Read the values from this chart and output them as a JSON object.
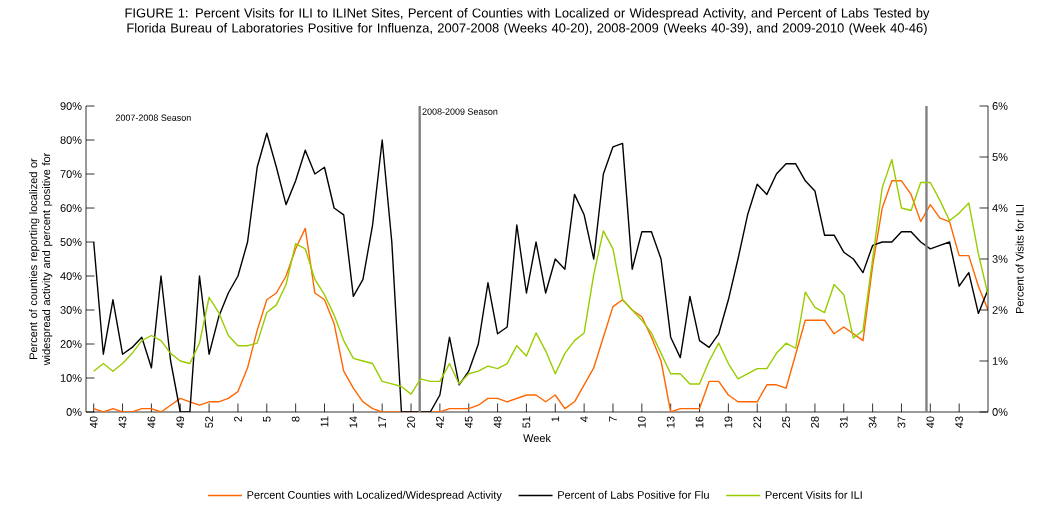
{
  "chart_data": {
    "type": "line",
    "title": "FIGURE 1: Percent Visits for ILI to ILINet Sites, Percent of Counties with Localized or Widespread Activity, and Percent of Labs Tested by Florida Bureau of Laboratories Positive for Influenza, 2007-2008 (Weeks 40-20), 2008-2009 (Weeks 40-39), and 2009-2010 (Week 40-46)",
    "xlabel": "Week",
    "ylabel": "Percent of counties reporting localized or widespread activity and percent positive for",
    "y2label": "Percent of Visits for ILI",
    "categories": [
      "40",
      null,
      null,
      "43",
      null,
      null,
      "46",
      null,
      null,
      "49",
      null,
      null,
      "52",
      null,
      null,
      "2",
      null,
      null,
      "5",
      null,
      null,
      "8",
      null,
      null,
      "11",
      null,
      null,
      "14",
      null,
      null,
      "17",
      null,
      null,
      "20",
      null,
      null,
      "42",
      null,
      null,
      "45",
      null,
      null,
      "48",
      null,
      null,
      "51",
      null,
      null,
      "1",
      null,
      null,
      "4",
      null,
      null,
      "7",
      null,
      null,
      "10",
      null,
      null,
      "13",
      null,
      null,
      "16",
      null,
      null,
      "19",
      null,
      null,
      "22",
      null,
      null,
      "25",
      null,
      null,
      "28",
      null,
      null,
      "31",
      null,
      null,
      "34",
      null,
      null,
      "37",
      null,
      null,
      "40",
      null,
      null,
      "43",
      null,
      null,
      null
    ],
    "series": [
      {
        "name": "Percent Counties with Localized/Widespread Activity",
        "color": "#ff6600",
        "values": [
          1,
          0,
          1,
          0,
          0,
          1,
          1,
          0,
          2,
          4,
          3,
          2,
          3,
          3,
          4,
          6,
          13,
          24,
          33,
          35,
          40,
          48,
          54,
          35,
          33,
          26,
          12,
          7,
          3,
          1,
          0,
          0,
          0,
          0,
          0,
          0,
          0,
          1,
          1,
          1,
          2,
          4,
          4,
          3,
          4,
          5,
          5,
          3,
          5,
          1,
          3,
          8,
          13,
          22,
          31,
          33,
          30,
          28,
          22,
          15,
          0,
          1,
          1,
          1,
          9,
          9,
          5,
          3,
          3,
          3,
          8,
          8,
          7,
          17,
          27,
          27,
          27,
          23,
          25,
          23,
          21,
          43,
          60,
          68,
          68,
          64,
          56,
          61,
          57,
          56,
          46,
          46,
          37,
          30
        ]
      },
      {
        "name": "Percent of Labs Positive for Flu",
        "color": "#000000",
        "values": [
          50,
          17,
          33,
          17,
          19,
          22,
          13,
          40,
          15,
          0,
          0,
          40,
          17,
          28,
          35,
          40,
          50,
          72,
          82,
          72,
          61,
          68,
          77,
          70,
          72,
          60,
          58,
          34,
          39,
          55,
          80,
          50,
          0,
          0,
          0,
          0,
          5,
          22,
          8,
          12,
          20,
          38,
          23,
          25,
          55,
          35,
          50,
          35,
          45,
          42,
          64,
          58,
          45,
          70,
          78,
          79,
          42,
          53,
          53,
          45,
          22,
          16,
          34,
          21,
          19,
          23,
          33,
          45,
          58,
          67,
          64,
          70,
          73,
          73,
          68,
          65,
          52,
          52,
          47,
          45,
          41,
          49,
          50,
          50,
          53,
          53,
          50,
          48,
          49,
          50,
          37,
          41,
          29,
          36
        ]
      },
      {
        "name": "Percent Visits for ILI",
        "color": "#99cc00",
        "axis": "y2",
        "values": [
          0.8,
          0.95,
          0.8,
          0.95,
          1.15,
          1.4,
          1.5,
          1.4,
          1.15,
          1.0,
          0.95,
          1.35,
          2.25,
          1.95,
          1.5,
          1.3,
          1.3,
          1.35,
          1.95,
          2.1,
          2.5,
          3.3,
          3.2,
          2.6,
          2.3,
          1.9,
          1.4,
          1.05,
          1.0,
          0.95,
          0.6,
          0.55,
          0.5,
          0.35,
          0.65,
          0.6,
          0.6,
          0.95,
          0.55,
          0.75,
          0.8,
          0.9,
          0.85,
          0.95,
          1.3,
          1.1,
          1.55,
          1.2,
          0.75,
          1.15,
          1.4,
          1.55,
          2.7,
          3.55,
          3.2,
          2.2,
          2.0,
          1.8,
          1.55,
          1.15,
          0.75,
          0.75,
          0.55,
          0.55,
          1.0,
          1.35,
          0.95,
          0.65,
          0.75,
          0.85,
          0.85,
          1.15,
          1.35,
          1.25,
          2.35,
          2.05,
          1.95,
          2.5,
          2.3,
          1.45,
          1.6,
          3.0,
          4.4,
          4.95,
          4.0,
          3.95,
          4.5,
          4.5,
          4.15,
          3.75,
          3.9,
          4.1,
          3.1,
          2.3
        ]
      }
    ],
    "ylim": [
      0,
      90
    ],
    "yticks": [
      {
        "value": 0,
        "label": "0%"
      },
      {
        "value": 10,
        "label": "10%"
      },
      {
        "value": 20,
        "label": "20%"
      },
      {
        "value": 30,
        "label": "30%"
      },
      {
        "value": 40,
        "label": "40%"
      },
      {
        "value": 50,
        "label": "50%"
      },
      {
        "value": 60,
        "label": "60%"
      },
      {
        "value": 70,
        "label": "70%"
      },
      {
        "value": 80,
        "label": "80%"
      },
      {
        "value": 90,
        "label": "90%"
      }
    ],
    "y2lim": [
      0,
      6
    ],
    "y2ticks": [
      {
        "value": 0,
        "label": "0%"
      },
      {
        "value": 1,
        "label": "1%"
      },
      {
        "value": 2,
        "label": "2%"
      },
      {
        "value": 3,
        "label": "3%"
      },
      {
        "value": 4,
        "label": "4%"
      },
      {
        "value": 5,
        "label": "5%"
      },
      {
        "value": 6,
        "label": "6%"
      }
    ],
    "annotations": [
      "2007-2008 Season",
      "2008-2009 Season"
    ],
    "legend": "bottom"
  }
}
